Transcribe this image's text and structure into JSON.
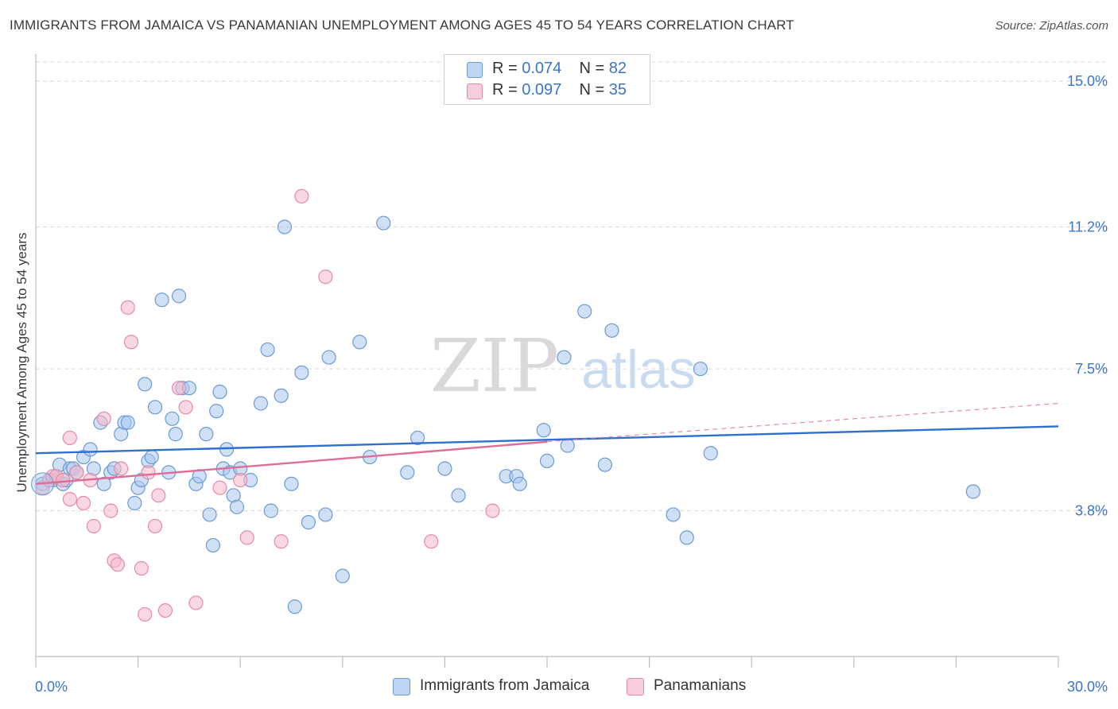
{
  "title": "IMMIGRANTS FROM JAMAICA VS PANAMANIAN UNEMPLOYMENT AMONG AGES 45 TO 54 YEARS CORRELATION CHART",
  "source": "Source: ZipAtlas.com",
  "watermark": {
    "zip": "ZIP",
    "atlas": "atlas"
  },
  "colors": {
    "blue_fill": "#a9c8ef",
    "blue_stroke": "#6b9ad6",
    "blue_line": "#2f6fce",
    "pink_fill": "#f5b8cb",
    "pink_stroke": "#e68aa8",
    "pink_line": "#e06c98",
    "axis_text": "#3b74c9",
    "grid": "#d8d8d8"
  },
  "legend": [
    {
      "r_label": "R = ",
      "r_value": "0.074",
      "n_label": "N = ",
      "n_value": "82"
    },
    {
      "r_label": "R = ",
      "r_value": "0.097",
      "n_label": "N = ",
      "n_value": "35"
    }
  ],
  "bottom_legend": [
    "Immigrants from Jamaica",
    "Panamanians"
  ],
  "chart_data": {
    "type": "scatter",
    "title": "IMMIGRANTS FROM JAMAICA VS PANAMANIAN UNEMPLOYMENT AMONG AGES 45 TO 54 YEARS CORRELATION CHART",
    "xlabel": "",
    "ylabel": "Unemployment Among Ages 45 to 54 years",
    "xlim": [
      0,
      30
    ],
    "ylim": [
      0,
      15.5
    ],
    "x_tick_labels": [
      {
        "value": 0,
        "label": "0.0%"
      },
      {
        "value": 30,
        "label": "30.0%"
      }
    ],
    "y_tick_labels": [
      {
        "value": 3.8,
        "label": "3.8%"
      },
      {
        "value": 7.5,
        "label": "7.5%"
      },
      {
        "value": 11.2,
        "label": "11.2%"
      },
      {
        "value": 15.0,
        "label": "15.0%"
      }
    ],
    "x_minor_ticks": [
      0,
      3,
      6,
      9,
      12,
      15,
      18,
      21,
      24,
      27,
      30
    ],
    "grid": true,
    "legend_position": "top-center",
    "series": [
      {
        "name": "Immigrants from Jamaica",
        "r": 0.074,
        "n": 82,
        "trend": {
          "x": [
            0,
            30
          ],
          "y": [
            5.3,
            6.0
          ]
        },
        "points": [
          [
            0.2,
            4.5
          ],
          [
            0.4,
            4.6
          ],
          [
            0.5,
            4.6
          ],
          [
            0.6,
            4.7
          ],
          [
            0.7,
            5.0
          ],
          [
            0.8,
            4.5
          ],
          [
            0.9,
            4.6
          ],
          [
            1.0,
            4.9
          ],
          [
            1.1,
            4.9
          ],
          [
            1.2,
            4.8
          ],
          [
            1.4,
            5.2
          ],
          [
            1.6,
            5.4
          ],
          [
            1.7,
            4.9
          ],
          [
            1.9,
            6.1
          ],
          [
            2.0,
            4.5
          ],
          [
            2.2,
            4.8
          ],
          [
            2.3,
            4.9
          ],
          [
            2.5,
            5.8
          ],
          [
            2.6,
            6.1
          ],
          [
            2.7,
            6.1
          ],
          [
            2.9,
            4.0
          ],
          [
            3.0,
            4.4
          ],
          [
            3.1,
            4.6
          ],
          [
            3.2,
            7.1
          ],
          [
            3.3,
            5.1
          ],
          [
            3.4,
            5.2
          ],
          [
            3.5,
            6.5
          ],
          [
            3.7,
            9.3
          ],
          [
            3.9,
            4.8
          ],
          [
            4.0,
            6.2
          ],
          [
            4.1,
            5.8
          ],
          [
            4.2,
            9.4
          ],
          [
            4.3,
            7.0
          ],
          [
            4.5,
            7.0
          ],
          [
            4.7,
            4.5
          ],
          [
            4.8,
            4.7
          ],
          [
            5.0,
            5.8
          ],
          [
            5.1,
            3.7
          ],
          [
            5.2,
            2.9
          ],
          [
            5.3,
            6.4
          ],
          [
            5.4,
            6.9
          ],
          [
            5.5,
            4.9
          ],
          [
            5.6,
            5.4
          ],
          [
            5.7,
            4.8
          ],
          [
            5.8,
            4.2
          ],
          [
            5.9,
            3.9
          ],
          [
            6.0,
            4.9
          ],
          [
            6.3,
            4.6
          ],
          [
            6.6,
            6.6
          ],
          [
            6.8,
            8.0
          ],
          [
            6.9,
            3.8
          ],
          [
            7.2,
            6.8
          ],
          [
            7.3,
            11.2
          ],
          [
            7.5,
            4.5
          ],
          [
            7.6,
            1.3
          ],
          [
            7.8,
            7.4
          ],
          [
            8.0,
            3.5
          ],
          [
            8.5,
            3.7
          ],
          [
            8.6,
            7.8
          ],
          [
            9.0,
            2.1
          ],
          [
            9.5,
            8.2
          ],
          [
            9.8,
            5.2
          ],
          [
            10.2,
            11.3
          ],
          [
            10.9,
            4.8
          ],
          [
            11.2,
            5.7
          ],
          [
            12.0,
            4.9
          ],
          [
            12.4,
            4.2
          ],
          [
            13.8,
            4.7
          ],
          [
            14.1,
            4.7
          ],
          [
            14.2,
            4.5
          ],
          [
            14.9,
            5.9
          ],
          [
            15.0,
            5.1
          ],
          [
            15.5,
            7.8
          ],
          [
            15.6,
            5.5
          ],
          [
            16.1,
            9.0
          ],
          [
            16.7,
            5.0
          ],
          [
            16.9,
            8.5
          ],
          [
            18.7,
            3.7
          ],
          [
            19.1,
            3.1
          ],
          [
            19.5,
            7.5
          ],
          [
            19.8,
            5.3
          ],
          [
            27.5,
            4.3
          ]
        ]
      },
      {
        "name": "Panamanians",
        "r": 0.097,
        "n": 35,
        "trend": {
          "x": [
            0,
            15
          ],
          "y": [
            4.5,
            5.6
          ]
        },
        "trend_extension": {
          "x": [
            15,
            30
          ],
          "y": [
            5.6,
            6.6
          ]
        },
        "points": [
          [
            0.2,
            4.4
          ],
          [
            0.4,
            4.6
          ],
          [
            0.5,
            4.7
          ],
          [
            0.6,
            4.7
          ],
          [
            0.8,
            4.6
          ],
          [
            1.0,
            4.1
          ],
          [
            1.0,
            5.7
          ],
          [
            1.2,
            4.8
          ],
          [
            1.4,
            4.0
          ],
          [
            1.6,
            4.6
          ],
          [
            1.7,
            3.4
          ],
          [
            2.0,
            6.2
          ],
          [
            2.2,
            3.8
          ],
          [
            2.3,
            2.5
          ],
          [
            2.4,
            2.4
          ],
          [
            2.5,
            4.9
          ],
          [
            2.7,
            9.1
          ],
          [
            2.8,
            8.2
          ],
          [
            3.1,
            2.3
          ],
          [
            3.2,
            1.1
          ],
          [
            3.3,
            4.8
          ],
          [
            3.5,
            3.4
          ],
          [
            3.6,
            4.2
          ],
          [
            3.8,
            1.2
          ],
          [
            4.2,
            7.0
          ],
          [
            4.4,
            6.5
          ],
          [
            4.7,
            1.4
          ],
          [
            5.4,
            4.4
          ],
          [
            6.0,
            4.6
          ],
          [
            6.2,
            3.1
          ],
          [
            7.2,
            3.0
          ],
          [
            7.8,
            12.0
          ],
          [
            8.5,
            9.9
          ],
          [
            11.6,
            3.0
          ],
          [
            13.4,
            3.8
          ]
        ]
      }
    ]
  }
}
